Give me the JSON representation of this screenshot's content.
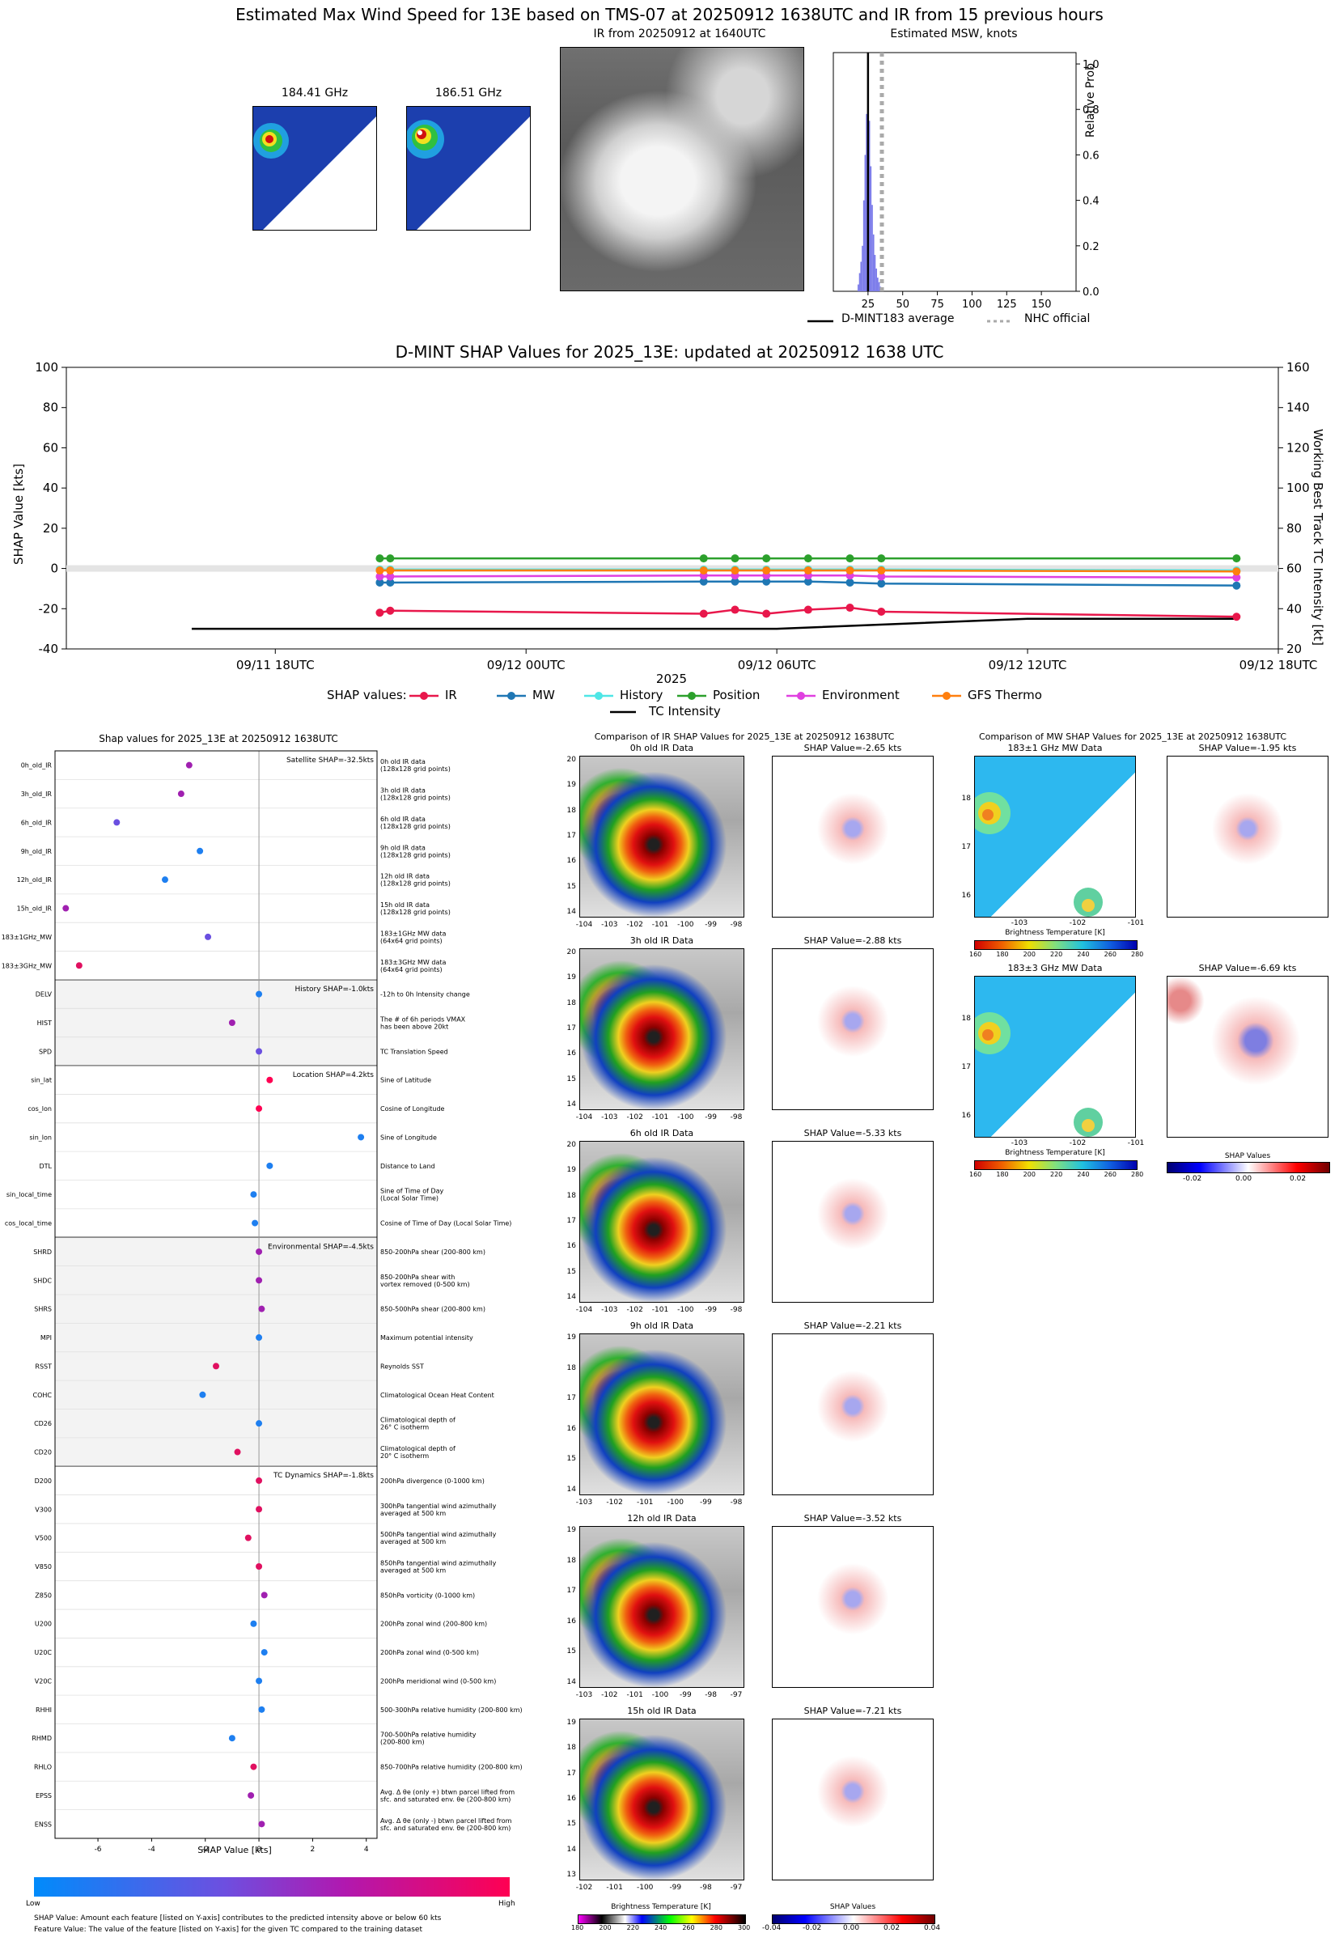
{
  "header": {
    "title": "Estimated Max Wind Speed for 13E based on TMS-07 at 20250912 1638UTC and IR from 15 previous hours"
  },
  "mw_panels": [
    {
      "label": "184.41 GHz"
    },
    {
      "label": "186.51 GHz"
    }
  ],
  "ir_panel": {
    "label": "IR from 20250912 at 1640UTC"
  },
  "histogram": {
    "title": "Estimated MSW, knots",
    "ylabel": "Relative Prob",
    "xticks": [
      "25",
      "50",
      "75",
      "100",
      "125",
      "150"
    ],
    "yticks": [
      "0.0",
      "0.2",
      "0.4",
      "0.6",
      "0.8",
      "1.0"
    ],
    "legend_avg": "D-MINT183 average",
    "legend_nhc": "NHC official",
    "bins_x": [
      18,
      19,
      20,
      21,
      22,
      23,
      24,
      25,
      26,
      27,
      28,
      29,
      30,
      31,
      32,
      33,
      34,
      35
    ],
    "bins_p": [
      0.03,
      0.08,
      0.13,
      0.2,
      0.4,
      0.6,
      0.78,
      0.9,
      0.75,
      0.55,
      0.38,
      0.25,
      0.16,
      0.1,
      0.06,
      0.04,
      0.02,
      0.01
    ],
    "avg_value": 25,
    "nhc_value": 35,
    "xlim": [
      0,
      175
    ],
    "ylim": [
      0,
      1.05
    ]
  },
  "shap_timeseries": {
    "title": "D-MINT SHAP Values for 2025_13E: updated at 20250912 1638 UTC",
    "ylabel_left": "SHAP Value [kts]",
    "ylabel_right": "Working Best Track TC Intensity [kt]",
    "xlabel": "2025",
    "legend_prefix": "SHAP values:",
    "yticks_left": [
      "100",
      "80",
      "60",
      "40",
      "20",
      "0",
      "-20",
      "-40"
    ],
    "yticks_right": [
      "160",
      "140",
      "120",
      "100",
      "80",
      "60",
      "40",
      "20"
    ],
    "xticks": [
      "09/11 18UTC",
      "09/12 00UTC",
      "09/12 06UTC",
      "09/12 12UTC",
      "09/12 18UTC"
    ],
    "x_hours": [
      2.5,
      2.75,
      10.25,
      11.0,
      11.75,
      12.75,
      13.75,
      14.5,
      23.0
    ],
    "series": [
      {
        "name": "IR",
        "color": "#e8174b",
        "values": [
          -22,
          -21,
          -22.5,
          -20.5,
          -22.5,
          -20.5,
          -19.5,
          -21.5,
          -24
        ]
      },
      {
        "name": "MW",
        "color": "#1f77b4",
        "values": [
          -7,
          -7,
          -6.5,
          -6.5,
          -6.5,
          -6.5,
          -7,
          -7.5,
          -8.5
        ]
      },
      {
        "name": "History",
        "color": "#4ee6e6",
        "values": [
          -0.5,
          -0.5,
          -0.5,
          -0.5,
          -0.5,
          -0.5,
          -0.5,
          -0.5,
          -1
        ]
      },
      {
        "name": "Position",
        "color": "#2ca02c",
        "values": [
          5,
          5,
          5,
          5,
          5,
          5,
          5,
          5,
          5
        ]
      },
      {
        "name": "Environment",
        "color": "#e040e0",
        "values": [
          -4,
          -4,
          -3.5,
          -3.5,
          -3.5,
          -3.5,
          -3.5,
          -4,
          -4.5
        ]
      },
      {
        "name": "GFS Thermo",
        "color": "#ff7f0e",
        "values": [
          -1,
          -1,
          -1,
          -1,
          -1,
          -1,
          -1,
          -1,
          -1.5
        ]
      }
    ],
    "intensity_name": "TC Intensity",
    "intensity_hours": [
      -2,
      10.25,
      12,
      18,
      23
    ],
    "intensity_values": [
      30,
      30,
      30,
      35,
      35
    ],
    "ylim_left": [
      -40,
      100
    ],
    "ylim_right": [
      20,
      160
    ],
    "xlim_hours": [
      -5,
      24
    ]
  },
  "feature_panel": {
    "title": "Shap values for 2025_13E at 20250912 1638UTC",
    "xlabel": "SHAP Value [kts]",
    "xticks": [
      "-6",
      "-4",
      "-2",
      "0",
      "2",
      "4"
    ],
    "group_labels": [
      "Satellite SHAP=-32.5kts",
      "History SHAP=-1.0kts",
      "Location SHAP=4.2kts",
      "Environmental SHAP=-4.5kts",
      "TC Dynamics SHAP=-1.8kts"
    ],
    "features": [
      {
        "name": "0h_old_IR",
        "desc": "0h old IR data\n(128x128 grid points)",
        "value": -2.6,
        "color": "#a020b0"
      },
      {
        "name": "3h_old_IR",
        "desc": "3h old IR data\n(128x128 grid points)",
        "value": -2.9,
        "color": "#a020b0"
      },
      {
        "name": "6h_old_IR",
        "desc": "6h old IR data\n(128x128 grid points)",
        "value": -5.3,
        "color": "#6a4fe0"
      },
      {
        "name": "9h_old_IR",
        "desc": "9h old IR data\n(128x128 grid points)",
        "value": -2.2,
        "color": "#1e7ff0"
      },
      {
        "name": "12h_old_IR",
        "desc": "12h old IR data\n(128x128 grid points)",
        "value": -3.5,
        "color": "#1e7ff0"
      },
      {
        "name": "15h_old_IR",
        "desc": "15h old IR data\n(128x128 grid points)",
        "value": -7.2,
        "color": "#a020b0"
      },
      {
        "name": "183±1GHz_MW",
        "desc": "183±1GHz MW data\n(64x64 grid points)",
        "value": -1.9,
        "color": "#6a4fe0"
      },
      {
        "name": "183±3GHz_MW",
        "desc": "183±3GHz MW data\n(64x64 grid points)",
        "value": -6.7,
        "color": "#e01060"
      },
      {
        "name": "DELV",
        "desc": "-12h to 0h Intensity change",
        "value": 0.0,
        "color": "#1e7ff0"
      },
      {
        "name": "HIST",
        "desc": "The # of 6h periods VMAX\nhas been above 20kt",
        "value": -1.0,
        "color": "#a020b0"
      },
      {
        "name": "SPD",
        "desc": "TC Translation Speed",
        "value": 0.0,
        "color": "#6a4fe0"
      },
      {
        "name": "sin_lat",
        "desc": "Sine of Latitude",
        "value": 0.4,
        "color": "#ff0052"
      },
      {
        "name": "cos_lon",
        "desc": "Cosine of Longitude",
        "value": 0.0,
        "color": "#ff0052"
      },
      {
        "name": "sin_lon",
        "desc": "Sine of Longitude",
        "value": 3.8,
        "color": "#1e7ff0"
      },
      {
        "name": "DTL",
        "desc": "Distance to Land",
        "value": 0.4,
        "color": "#1e7ff0"
      },
      {
        "name": "sin_local_time",
        "desc": "Sine of Time of Day\n(Local Solar Time)",
        "value": -0.2,
        "color": "#1e7ff0"
      },
      {
        "name": "cos_local_time",
        "desc": "Cosine of Time of Day (Local Solar Time)",
        "value": -0.15,
        "color": "#1e7ff0"
      },
      {
        "name": "SHRD",
        "desc": "850-200hPa shear (200-800 km)",
        "value": 0.0,
        "color": "#a020b0"
      },
      {
        "name": "SHDC",
        "desc": "850-200hPa shear with\nvortex removed (0-500 km)",
        "value": 0.0,
        "color": "#a020b0"
      },
      {
        "name": "SHRS",
        "desc": "850-500hPa shear (200-800 km)",
        "value": 0.1,
        "color": "#a020b0"
      },
      {
        "name": "MPI",
        "desc": "Maximum potential intensity",
        "value": 0.0,
        "color": "#1e7ff0"
      },
      {
        "name": "RSST",
        "desc": "Reynolds SST",
        "value": -1.6,
        "color": "#e01060"
      },
      {
        "name": "COHC",
        "desc": "Climatological Ocean Heat Content",
        "value": -2.1,
        "color": "#1e7ff0"
      },
      {
        "name": "CD26",
        "desc": "Climatological depth of\n26° C isotherm",
        "value": 0.0,
        "color": "#1e7ff0"
      },
      {
        "name": "CD20",
        "desc": "Climatological depth of\n20° C isotherm",
        "value": -0.8,
        "color": "#e01060"
      },
      {
        "name": "D200",
        "desc": "200hPa divergence (0-1000 km)",
        "value": 0.0,
        "color": "#e01060"
      },
      {
        "name": "V300",
        "desc": "300hPa tangential wind azimuthally\naveraged at 500 km",
        "value": 0.0,
        "color": "#e01060"
      },
      {
        "name": "V500",
        "desc": "500hPa tangential wind azimuthally\naveraged at 500 km",
        "value": -0.4,
        "color": "#e01060"
      },
      {
        "name": "V850",
        "desc": "850hPa tangential wind azimuthally\naveraged at 500 km",
        "value": 0.0,
        "color": "#e01060"
      },
      {
        "name": "Z850",
        "desc": "850hPa vorticity (0-1000 km)",
        "value": 0.2,
        "color": "#a020b0"
      },
      {
        "name": "U200",
        "desc": "200hPa zonal wind (200-800 km)",
        "value": -0.2,
        "color": "#1e7ff0"
      },
      {
        "name": "U20C",
        "desc": "200hPa zonal wind (0-500 km)",
        "value": 0.2,
        "color": "#1e7ff0"
      },
      {
        "name": "V20C",
        "desc": "200hPa meridional wind (0-500 km)",
        "value": 0.0,
        "color": "#1e7ff0"
      },
      {
        "name": "RHHI",
        "desc": "500-300hPa relative humidity (200-800 km)",
        "value": 0.1,
        "color": "#1e7ff0"
      },
      {
        "name": "RHMD",
        "desc": "700-500hPa relative humidity\n(200-800 km)",
        "value": -1.0,
        "color": "#1e7ff0"
      },
      {
        "name": "RHLO",
        "desc": "850-700hPa relative humidity (200-800 km)",
        "value": -0.2,
        "color": "#e01060"
      },
      {
        "name": "EPSS",
        "desc": "Avg. Δ θe (only +) btwn parcel lifted from\nsfc. and saturated env. θe (200-800 km)",
        "value": -0.3,
        "color": "#a020b0"
      },
      {
        "name": "ENSS",
        "desc": "Avg. Δ θe (only -) btwn parcel lifted from\nsfc. and saturated env. θe (200-800 km)",
        "value": 0.1,
        "color": "#a020b0"
      }
    ],
    "xlim": [
      -7.6,
      4.4
    ],
    "colorbar_low": "Low",
    "colorbar_high": "High",
    "footnote1": "SHAP Value: Amount each feature [listed on Y-axis] contributes to the predicted intensity above or below 60 kts",
    "footnote2": "Feature Value: The value of the feature [listed on Y-axis] for the given TC compared to the training dataset"
  },
  "ir_comparison": {
    "title": "Comparison of IR SHAP Values for 2025_13E at 20250912 1638UTC",
    "rows": [
      {
        "data_label": "0h old IR Data",
        "shap_label": "SHAP Value=-2.65 kts",
        "yticks": [
          "20",
          "19",
          "18",
          "17",
          "16",
          "15",
          "14"
        ],
        "xticks": [
          "-104",
          "-103",
          "-102",
          "-101",
          "-100",
          "-99",
          "-98"
        ]
      },
      {
        "data_label": "3h old IR Data",
        "shap_label": "SHAP Value=-2.88 kts",
        "yticks": [
          "20",
          "19",
          "18",
          "17",
          "16",
          "15",
          "14"
        ],
        "xticks": [
          "-104",
          "-103",
          "-102",
          "-101",
          "-100",
          "-99",
          "-98"
        ]
      },
      {
        "data_label": "6h old IR Data",
        "shap_label": "SHAP Value=-5.33 kts",
        "yticks": [
          "20",
          "19",
          "18",
          "17",
          "16",
          "15",
          "14"
        ],
        "xticks": [
          "-104",
          "-103",
          "-102",
          "-101",
          "-100",
          "-99",
          "-98"
        ]
      },
      {
        "data_label": "9h old IR Data",
        "shap_label": "SHAP Value=-2.21 kts",
        "yticks": [
          "19",
          "18",
          "17",
          "16",
          "15",
          "14"
        ],
        "xticks": [
          "-103",
          "-102",
          "-101",
          "-100",
          "-99",
          "-98"
        ]
      },
      {
        "data_label": "12h old IR Data",
        "shap_label": "SHAP Value=-3.52 kts",
        "yticks": [
          "19",
          "18",
          "17",
          "16",
          "15",
          "14"
        ],
        "xticks": [
          "-103",
          "-102",
          "-101",
          "-100",
          "-99",
          "-98",
          "-97"
        ]
      },
      {
        "data_label": "15h old IR Data",
        "shap_label": "SHAP Value=-7.21 kts",
        "yticks": [
          "19",
          "18",
          "17",
          "16",
          "15",
          "14",
          "13"
        ],
        "xticks": [
          "-102",
          "-101",
          "-100",
          "-99",
          "-98",
          "-97"
        ]
      }
    ],
    "cbar_ir_label": "Brightness Temperature [K]",
    "cbar_ir_ticks": [
      "180",
      "200",
      "220",
      "240",
      "260",
      "280",
      "300"
    ],
    "cbar_shap_label": "SHAP Values",
    "cbar_shap_ticks": [
      "-0.04",
      "-0.02",
      "0.00",
      "0.02",
      "0.04"
    ]
  },
  "mw_comparison": {
    "title": "Comparison of MW SHAP Values for 2025_13E at 20250912 1638UTC",
    "rows": [
      {
        "data_label": "183±1 GHz MW Data",
        "shap_label": "SHAP Value=-1.95 kts",
        "yticks": [
          "18",
          "17",
          "16"
        ],
        "xticks": [
          "-103",
          "-102",
          "-101"
        ]
      },
      {
        "data_label": "183±3 GHz MW Data",
        "shap_label": "SHAP Value=-6.69 kts",
        "yticks": [
          "18",
          "17",
          "16"
        ],
        "xticks": [
          "-103",
          "-102",
          "-101"
        ]
      }
    ],
    "cbar_bt_label": "Brightness Temperature [K]",
    "cbar_bt_ticks": [
      "160",
      "180",
      "200",
      "220",
      "240",
      "260",
      "280"
    ],
    "cbar_shap_label": "SHAP Values",
    "cbar_shap_ticks": [
      "-0.02",
      "0.00",
      "0.02"
    ]
  }
}
